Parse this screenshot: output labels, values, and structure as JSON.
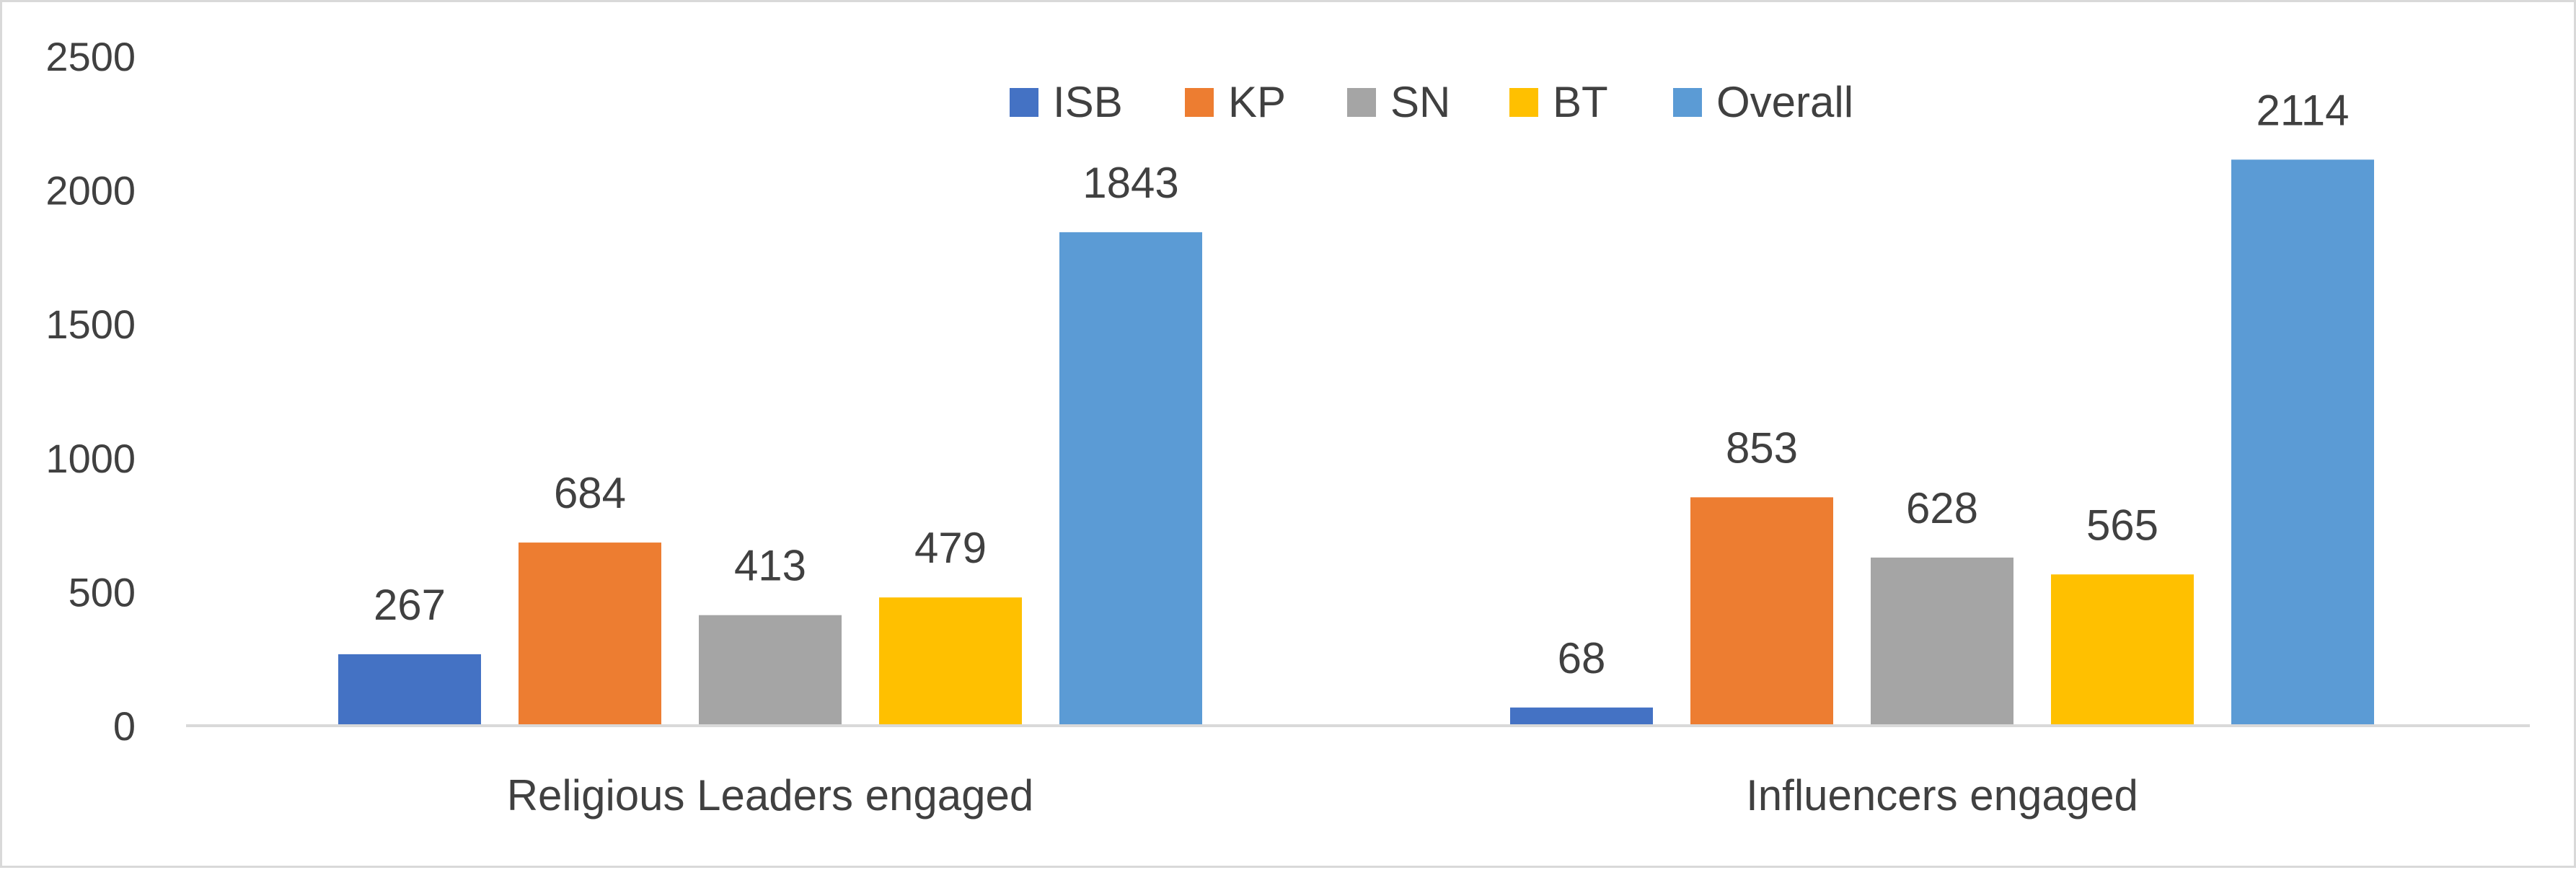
{
  "chart_data": {
    "type": "bar",
    "title": "",
    "xlabel": "",
    "ylabel": "",
    "categories": [
      "Religious Leaders engaged",
      "Influencers engaged"
    ],
    "series": [
      {
        "name": "ISB",
        "color": "#4472C4",
        "values": [
          267,
          68
        ]
      },
      {
        "name": "KP",
        "color": "#ED7D31",
        "values": [
          684,
          853
        ]
      },
      {
        "name": "SN",
        "color": "#A5A5A5",
        "values": [
          413,
          628
        ]
      },
      {
        "name": "BT",
        "color": "#FFC000",
        "values": [
          479,
          565
        ]
      },
      {
        "name": "Overall",
        "color": "#5B9BD5",
        "values": [
          1843,
          2114
        ]
      }
    ],
    "ylim": [
      0,
      2500
    ],
    "yticks": [
      0,
      500,
      1000,
      1500,
      2000,
      2500
    ],
    "grid": false,
    "legend_position": "top-right",
    "data_labels": true
  }
}
